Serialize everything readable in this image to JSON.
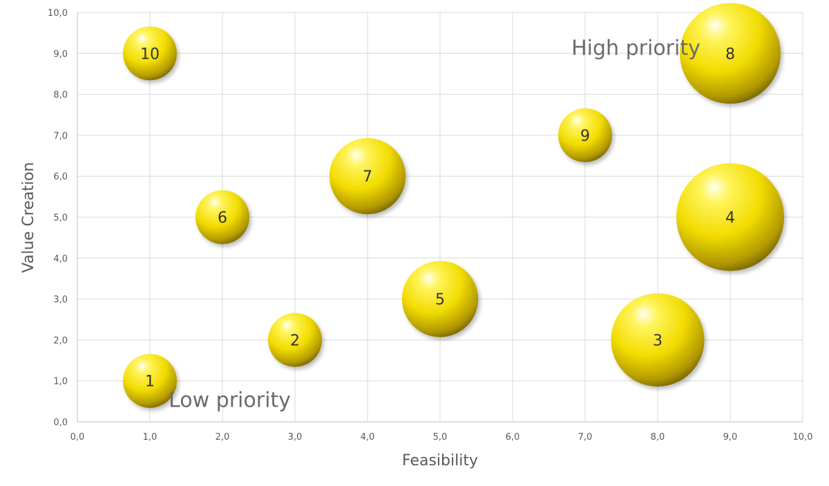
{
  "chart_data": {
    "type": "scatter",
    "subtype": "bubble",
    "title": "",
    "xlabel": "Feasibility",
    "ylabel": "Value Creation",
    "xlim": [
      0,
      10
    ],
    "ylim": [
      0,
      10
    ],
    "x_ticks": [
      "0,0",
      "1,0",
      "2,0",
      "3,0",
      "4,0",
      "5,0",
      "6,0",
      "7,0",
      "8,0",
      "9,0",
      "10,0"
    ],
    "y_ticks": [
      "0,0",
      "1,0",
      "2,0",
      "3,0",
      "4,0",
      "5,0",
      "6,0",
      "7,0",
      "8,0",
      "9,0",
      "10,0"
    ],
    "grid": true,
    "legend": "none",
    "bubble_color": "#f2dc00",
    "points": [
      {
        "label": "1",
        "x": 1,
        "y": 1,
        "size": 1
      },
      {
        "label": "2",
        "x": 3,
        "y": 2,
        "size": 1
      },
      {
        "label": "3",
        "x": 8,
        "y": 2,
        "size": 3
      },
      {
        "label": "4",
        "x": 9,
        "y": 5,
        "size": 4
      },
      {
        "label": "5",
        "x": 5,
        "y": 3,
        "size": 2
      },
      {
        "label": "6",
        "x": 2,
        "y": 5,
        "size": 1
      },
      {
        "label": "7",
        "x": 4,
        "y": 6,
        "size": 2
      },
      {
        "label": "8",
        "x": 9,
        "y": 9,
        "size": 3.5
      },
      {
        "label": "9",
        "x": 7,
        "y": 7,
        "size": 1
      },
      {
        "label": "10",
        "x": 1,
        "y": 9,
        "size": 1
      }
    ],
    "annotations": [
      {
        "text": "High priority",
        "x": 7.7,
        "y": 9.0
      },
      {
        "text": "Low priority",
        "x": 2.1,
        "y": 0.4
      }
    ]
  }
}
